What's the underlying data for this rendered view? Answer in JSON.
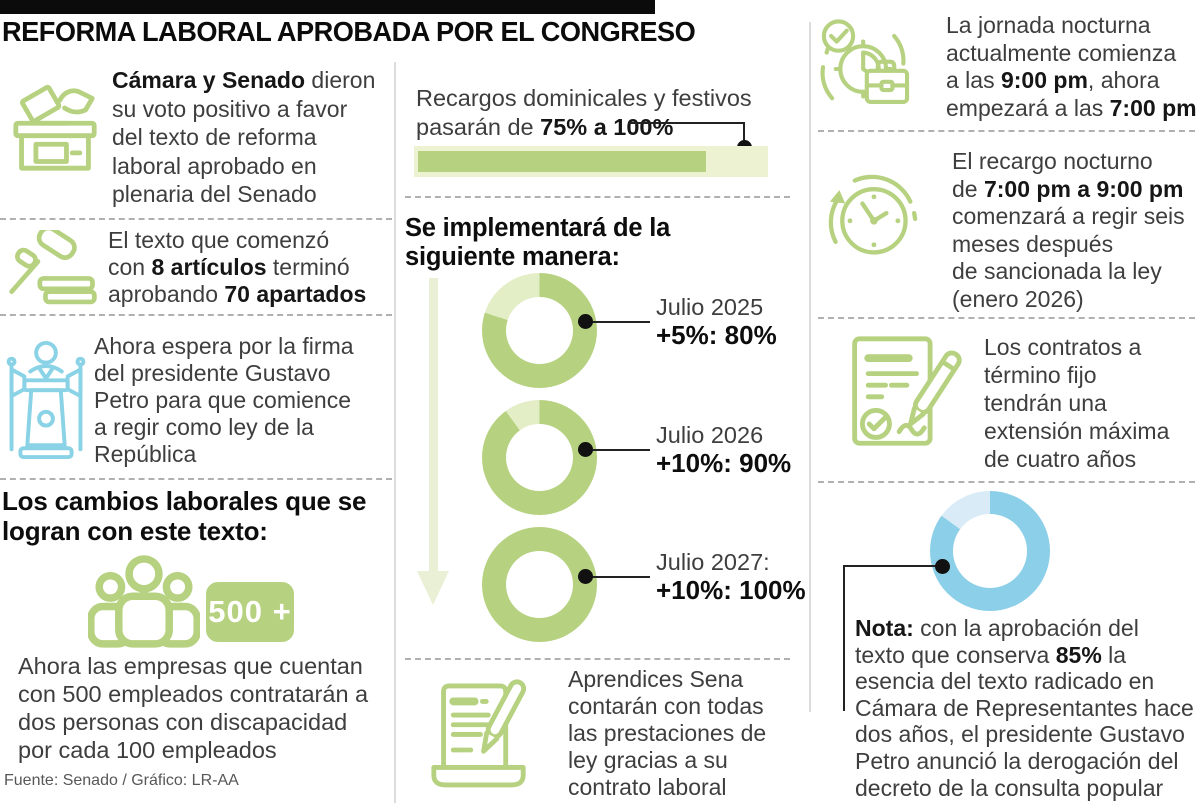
{
  "title": "REFORMA LABORAL APROBADA POR EL CONGRESO",
  "colors": {
    "green": "#b6d17f",
    "green_light": "#e3edc6",
    "green_pale": "#edf2d2",
    "green_arrow": "#e9f0d5",
    "blue": "#8ad2e6",
    "blue_donut": "#8ccfe8",
    "blue_donut_light": "#d8ebf7",
    "text": "#3e3e3e",
    "heading": "#0d0d0d",
    "footer_gray": "#575757"
  },
  "left": {
    "items": [
      {
        "icon": "ballot-box",
        "segments": [
          {
            "t": "Cámara y Senado",
            "b": true
          },
          {
            "t": " dieron\nsu voto positivo a favor\ndel texto de reforma\nlaboral aprobado en\nplenaria del Senado",
            "b": false
          }
        ]
      },
      {
        "icon": "gavel",
        "segments": [
          {
            "t": "El texto que comenzó\ncon ",
            "b": false
          },
          {
            "t": "8 artículos",
            "b": true
          },
          {
            "t": " terminó\naprobando ",
            "b": false
          },
          {
            "t": "70 apartados",
            "b": true
          }
        ]
      },
      {
        "icon": "podium",
        "segments": [
          {
            "t": "Ahora espera por la firma\ndel presidente Gustavo\nPetro para que comience\na regir como ley de la\nRepública",
            "b": false
          }
        ]
      }
    ],
    "changes_header": "Los cambios laborales que se\nlogran con este texto:",
    "badge_label": "500 +",
    "companies_text": "Ahora las empresas que cuentan\ncon 500 empleados contratarán a\ndos personas con discapacidad\npor cada 100 empleados",
    "source": "Fuente: Senado / Gráfico: LR-AA"
  },
  "middle": {
    "surcharge": {
      "segments": [
        {
          "t": "Recargos dominicales y festivos\npasarán de ",
          "b": false
        },
        {
          "t": "75% a 100%",
          "b": true
        }
      ],
      "current_pct": 75,
      "target_pct": 100
    },
    "implement_header": "Se implementará de la\nsiguiente manera:",
    "donuts": [
      {
        "label": "Julio 2025",
        "value": "+5%: 80%",
        "pct": 80
      },
      {
        "label": "Julio 2026",
        "value": "+10%: 90%",
        "pct": 90
      },
      {
        "label": "Julio 2027:",
        "value": "+10%: 100%",
        "pct": 100
      }
    ],
    "sena_segments": [
      {
        "t": "Aprendices Sena\ncontarán con todas\nlas prestaciones de\nley gracias a su\ncontrato laboral",
        "b": false
      }
    ]
  },
  "right": {
    "items": [
      {
        "icon": "clock-briefcase",
        "segments": [
          {
            "t": "La jornada nocturna\nactualmente comienza\na las ",
            "b": false
          },
          {
            "t": "9:00 pm",
            "b": true
          },
          {
            "t": ", ahora\nempezará a las ",
            "b": false
          },
          {
            "t": "7:00 pm",
            "b": true
          }
        ]
      },
      {
        "icon": "clock-arrow",
        "segments": [
          {
            "t": "El recargo nocturno\nde ",
            "b": false
          },
          {
            "t": "7:00 pm a 9:00 pm",
            "b": true
          },
          {
            "t": "\ncomenzará a regir seis\nmeses después\nde sancionada la ley\n(enero 2026)",
            "b": false
          }
        ]
      },
      {
        "icon": "contract-pen",
        "segments": [
          {
            "t": "Los contratos a\ntérmino fijo\ntendrán una\nextensión máxima\nde cuatro años",
            "b": false
          }
        ]
      }
    ],
    "note": {
      "pct": 85,
      "segments": [
        {
          "t": "Nota:",
          "b": true
        },
        {
          "t": " con la aprobación del\ntexto que conserva ",
          "b": false
        },
        {
          "t": "85%",
          "b": true
        },
        {
          "t": " la\nesencia del texto radicado en\nCámara de Representantes hace\ndos años, el presidente Gustavo\nPetro anunció la derogación del\ndecreto de la consulta popular",
          "b": false
        }
      ]
    }
  },
  "chart_data": [
    {
      "type": "bar",
      "title": "Recargos dominicales y festivos pasarán de 75% a 100%",
      "categories": [
        "Recargo dominical y festivo"
      ],
      "values": [
        75
      ],
      "ylim": [
        0,
        100
      ],
      "unit": "%"
    },
    {
      "type": "pie",
      "title": "Se implementará de la siguiente manera",
      "categories": [
        "Julio 2025",
        "Julio 2026",
        "Julio 2027"
      ],
      "values": [
        80,
        90,
        100
      ],
      "labels": [
        "+5%: 80%",
        "+10%: 90%",
        "+10%: 100%"
      ],
      "unit": "%"
    },
    {
      "type": "pie",
      "title": "Nota: texto que conserva 85% la esencia del radicado en Cámara de Representantes",
      "categories": [
        "Texto conservado",
        "Resto"
      ],
      "values": [
        85,
        15
      ],
      "unit": "%"
    }
  ]
}
